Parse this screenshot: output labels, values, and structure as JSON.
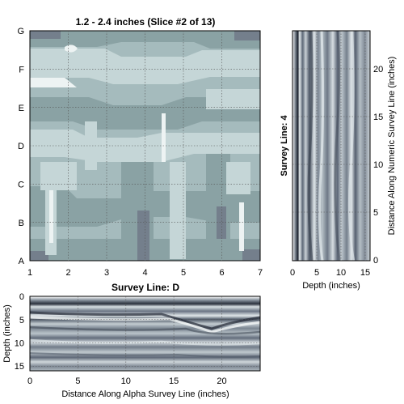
{
  "chart_data": [
    {
      "type": "heatmap",
      "name": "depth-slice-map",
      "title": "1.2 - 2.4 inches  (Slice #2 of 13)",
      "x_ticks": [
        "1",
        "2",
        "3",
        "4",
        "5",
        "6",
        "7"
      ],
      "y_ticks": [
        "A",
        "B",
        "C",
        "D",
        "E",
        "F",
        "G"
      ],
      "xlim": [
        1,
        7
      ],
      "grid": true,
      "colors": [
        "#edf3f3",
        "#c5d6d7",
        "#a5bbbd",
        "#8aa2a4",
        "#747f8c"
      ]
    },
    {
      "type": "heatmap",
      "name": "survey-line-4-profile",
      "ylabel_left": "Survey Line: 4",
      "xlabel": "Depth (inches)",
      "ylabel_right": "Distance Along Numeric Survey Line (inches)",
      "x_ticks": [
        0,
        5,
        10,
        15
      ],
      "xlim": [
        0,
        16
      ],
      "y_ticks": [
        0,
        5,
        10,
        15,
        20
      ],
      "ylim": [
        -0.5,
        23.5
      ],
      "grid": true
    },
    {
      "type": "heatmap",
      "name": "survey-line-d-profile",
      "title": "Survey Line: D",
      "xlabel": "Distance Along Alpha Survey Line (inches)",
      "ylabel": "Depth (inches)",
      "x_ticks": [
        0,
        5,
        10,
        15,
        20
      ],
      "xlim": [
        0,
        24
      ],
      "y_ticks": [
        0,
        5,
        10,
        15
      ],
      "ylim": [
        0,
        16
      ],
      "grid": true
    }
  ]
}
